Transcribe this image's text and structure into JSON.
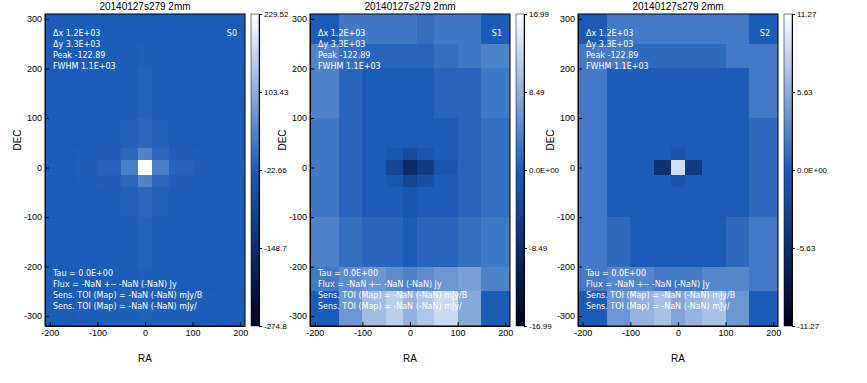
{
  "chart_data": [
    {
      "type": "heatmap",
      "title": "20140127s279 2mm",
      "x_label": "RA",
      "y_label": "DEC",
      "xlim": [
        -210,
        210
      ],
      "ylim": [
        -320,
        310
      ],
      "xticks": [
        -200,
        -100,
        0,
        100,
        200
      ],
      "yticks": [
        -300,
        -200,
        -100,
        0,
        100,
        200,
        300
      ],
      "x_edges": [
        -210,
        -150,
        -100,
        -50,
        -15,
        15,
        50,
        100,
        150,
        210
      ],
      "y_edges": [
        -320,
        -250,
        -200,
        -100,
        -40,
        -15,
        15,
        40,
        100,
        200,
        250,
        310
      ],
      "cells": [
        [
          -22,
          -20,
          -18,
          -16,
          -14,
          -16,
          -18,
          -20,
          -22
        ],
        [
          -22,
          -22,
          -21,
          -19,
          -17,
          -19,
          -21,
          -22,
          -22
        ],
        [
          -23,
          -22,
          -21,
          -18,
          -12,
          -18,
          -21,
          -22,
          -23
        ],
        [
          -23,
          -22,
          -20,
          -15,
          -5,
          -15,
          -20,
          -22,
          -23
        ],
        [
          -22,
          -20,
          -16,
          -5,
          40,
          -5,
          -16,
          -20,
          -22
        ],
        [
          -20,
          -16,
          -10,
          30,
          229,
          30,
          -10,
          -16,
          -20
        ],
        [
          -22,
          -20,
          -16,
          -5,
          40,
          -5,
          -16,
          -20,
          -22
        ],
        [
          -23,
          -22,
          -20,
          -15,
          -5,
          -15,
          -20,
          -22,
          -23
        ],
        [
          -23,
          -22,
          -21,
          -18,
          -12,
          -18,
          -21,
          -22,
          -23
        ],
        [
          -22,
          -22,
          -21,
          -19,
          -17,
          -19,
          -21,
          -22,
          -22
        ],
        [
          -23,
          -23,
          -22,
          -21,
          -20,
          -21,
          -22,
          -23,
          -23
        ]
      ],
      "colorbar": {
        "range": [
          -274.8,
          229.52
        ],
        "ticks": [
          229.52,
          103.43,
          -22.66,
          -148.7,
          -274.8
        ]
      },
      "annotations": [
        "Δx 1.2E+03",
        "Δy 3.3E+03",
        "Peak -122.89",
        "FWHM 1.1E+03"
      ],
      "stokes": "S0",
      "footer": [
        "Tau = 0.0E+00",
        "Flux = -NaN +-- -NaN (-NaN) Jy",
        "Sens. TOI (Map) = -NaN (-NaN) mJy/B",
        "Sens. TOI (Map) = -NaN (-NaN) mJy/"
      ]
    },
    {
      "type": "heatmap",
      "title": "20140127s279 2mm",
      "x_label": "RA",
      "y_label": "DEC",
      "xlim": [
        -210,
        210
      ],
      "ylim": [
        -320,
        310
      ],
      "xticks": [
        -200,
        -100,
        0,
        100,
        200
      ],
      "yticks": [
        -300,
        -200,
        -100,
        0,
        100,
        200,
        300
      ],
      "x_edges": [
        -210,
        -150,
        -100,
        -50,
        -15,
        15,
        50,
        100,
        150,
        210
      ],
      "y_edges": [
        -320,
        -250,
        -200,
        -100,
        -40,
        -15,
        15,
        40,
        100,
        200,
        250,
        310
      ],
      "cells": [
        [
          0,
          6,
          10,
          12,
          9,
          11,
          13,
          8,
          0
        ],
        [
          3,
          5,
          6,
          5,
          4,
          5,
          6,
          7,
          4
        ],
        [
          4,
          2,
          1,
          1,
          0,
          1,
          1,
          2,
          3
        ],
        [
          3,
          1,
          0,
          0,
          -1,
          0,
          0,
          1,
          2
        ],
        [
          3,
          1,
          0,
          -1,
          -4,
          -2,
          0,
          1,
          2
        ],
        [
          3,
          1,
          0,
          -4,
          -9,
          -6,
          -1,
          1,
          2
        ],
        [
          3,
          1,
          0,
          -1,
          -3,
          -1,
          0,
          1,
          2
        ],
        [
          3,
          1,
          0,
          0,
          0,
          0,
          0,
          1,
          2
        ],
        [
          4,
          1,
          0,
          0,
          0,
          0,
          1,
          1,
          3
        ],
        [
          4,
          2,
          1,
          1,
          1,
          1,
          2,
          3,
          4
        ],
        [
          0,
          3,
          3,
          3,
          3,
          2,
          3,
          3,
          0
        ]
      ],
      "colorbar": {
        "range": [
          -16.99,
          16.99
        ],
        "ticks": [
          16.99,
          8.49,
          {
            "value": 0,
            "label": "0.0E+00"
          },
          -8.49,
          -16.99
        ]
      },
      "annotations": [
        "Δx 1.2E+03",
        "Δy 3.3E+03",
        "Peak -122.89",
        "FWHM 1.1E+03"
      ],
      "stokes": "S1",
      "footer": [
        "Tau = 0.0E+00",
        "Flux = -NaN +-- -NaN (-NaN) Jy",
        "Sens. TOI (Map) = -NaN (-NaN) mJy/B",
        "Sens. TOI (Map) = -NaN (-NaN) mJy/"
      ]
    },
    {
      "type": "heatmap",
      "title": "20140127s279 2mm",
      "x_label": "RA",
      "y_label": "DEC",
      "xlim": [
        -210,
        210
      ],
      "ylim": [
        -320,
        310
      ],
      "xticks": [
        -200,
        -100,
        0,
        100,
        200
      ],
      "yticks": [
        -300,
        -200,
        -100,
        0,
        100,
        200,
        300
      ],
      "x_edges": [
        -210,
        -150,
        -100,
        -50,
        -15,
        15,
        50,
        100,
        150,
        210
      ],
      "y_edges": [
        -320,
        -250,
        -200,
        -100,
        -40,
        -15,
        15,
        40,
        100,
        200,
        250,
        310
      ],
      "cells": [
        [
          0,
          4,
          6,
          7,
          5,
          6,
          7,
          4,
          0
        ],
        [
          2,
          3,
          3,
          2,
          2,
          2,
          3,
          3,
          2
        ],
        [
          2,
          1,
          0,
          0,
          0,
          0,
          0,
          1,
          2
        ],
        [
          2,
          0,
          0,
          0,
          0,
          0,
          0,
          0,
          1
        ],
        [
          2,
          0,
          0,
          0,
          -1,
          0,
          0,
          0,
          1
        ],
        [
          2,
          0,
          0,
          -5,
          9,
          -4,
          0,
          0,
          1
        ],
        [
          2,
          0,
          0,
          0,
          -1,
          0,
          0,
          0,
          1
        ],
        [
          2,
          0,
          0,
          0,
          0,
          0,
          0,
          0,
          1
        ],
        [
          2,
          0,
          0,
          0,
          0,
          0,
          0,
          0,
          2
        ],
        [
          2,
          2,
          1,
          1,
          1,
          1,
          1,
          2,
          2
        ],
        [
          0,
          2,
          2,
          2,
          2,
          2,
          2,
          2,
          0
        ]
      ],
      "colorbar": {
        "range": [
          -11.27,
          11.27
        ],
        "ticks": [
          11.27,
          5.63,
          {
            "value": 0,
            "label": "0.0E+00"
          },
          -5.63,
          -11.27
        ]
      },
      "annotations": [
        "Δx 1.2E+03",
        "Δy 3.3E+03",
        "Peak -122.89",
        "FWHM 1.1E+03"
      ],
      "stokes": "S2",
      "footer": [
        "Tau = 0.0E+00",
        "Flux = -NaN +-- -NaN (-NaN) Jy",
        "Sens. TOI (Map) = -NaN (-NaN) mJy/B",
        "Sens. TOI (Map) = -NaN (-NaN) mJy/"
      ]
    }
  ]
}
